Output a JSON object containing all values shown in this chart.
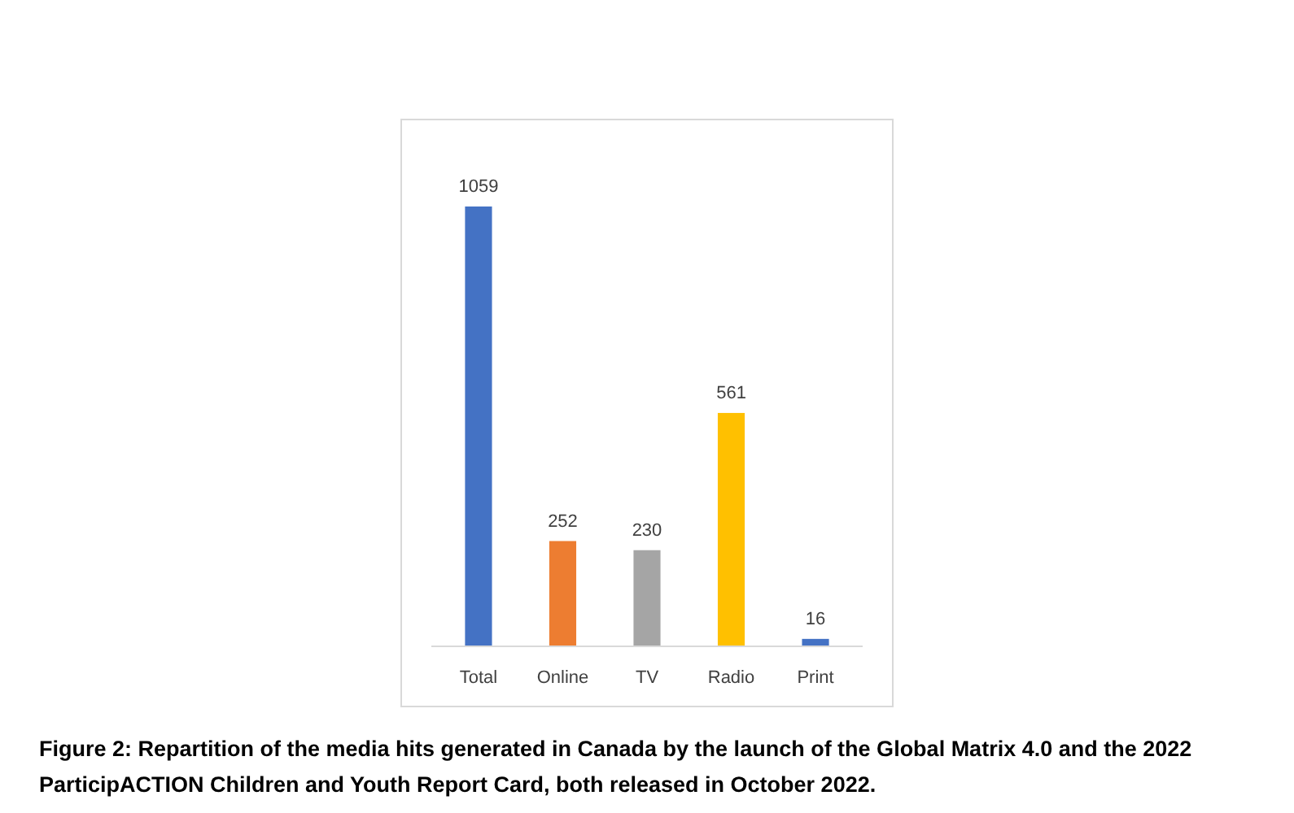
{
  "chart_data": {
    "type": "bar",
    "categories": [
      "Total",
      "Online",
      "TV",
      "Radio",
      "Print"
    ],
    "values": [
      1059,
      252,
      230,
      561,
      16
    ],
    "colors": [
      "#4472c4",
      "#ed7d31",
      "#a5a5a5",
      "#ffc000",
      "#4472c4"
    ],
    "data_labels": true,
    "annotations": [
      "Figure 2: Repartition of the media hits generated in Canada by the launch of the Global Matrix 4.0 and the 2022 ParticipACTION Children and Youth Report Card, both released in October 2022."
    ]
  }
}
